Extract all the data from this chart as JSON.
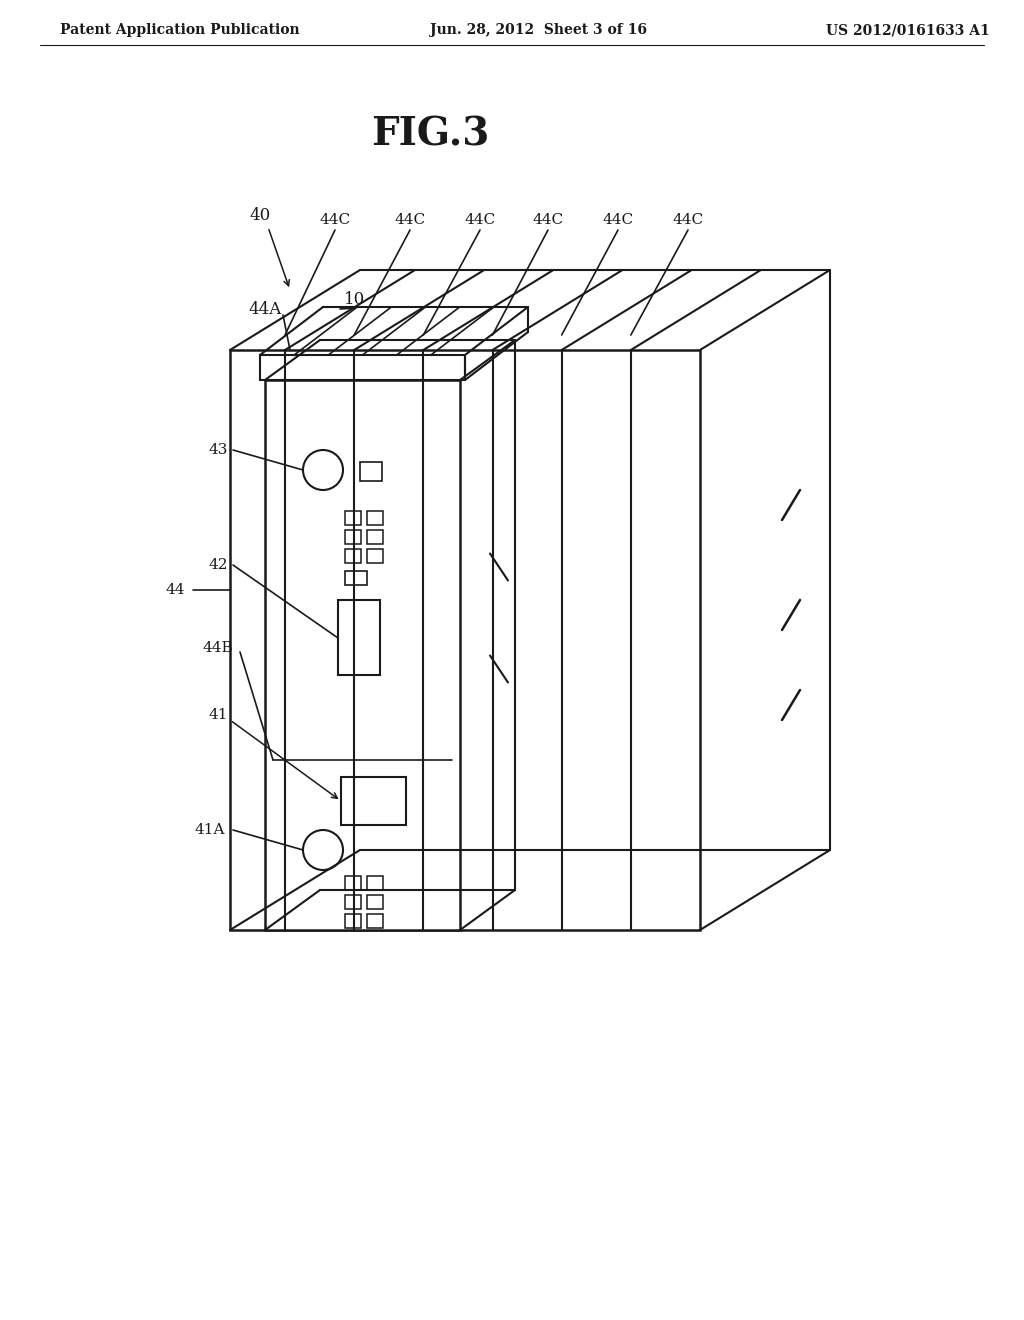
{
  "background_color": "#ffffff",
  "header_left": "Patent Application Publication",
  "header_center": "Jun. 28, 2012  Sheet 3 of 16",
  "header_right": "US 2012/0161633 A1",
  "fig_label": "FIG.3",
  "line_color": "#1a1a1a",
  "lw": 1.5
}
